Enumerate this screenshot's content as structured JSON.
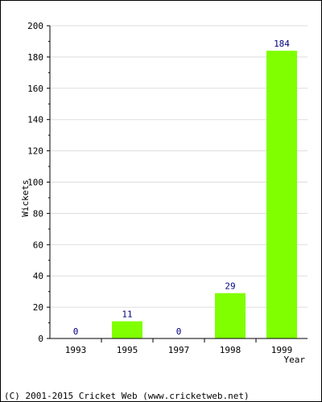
{
  "chart_data": {
    "type": "bar",
    "categories": [
      "1993",
      "1995",
      "1997",
      "1998",
      "1999"
    ],
    "values": [
      0,
      11,
      0,
      29,
      184
    ],
    "xlabel": "Year",
    "ylabel": "Wickets",
    "ylim": [
      0,
      200
    ],
    "yticks": [
      0,
      20,
      40,
      60,
      80,
      100,
      120,
      140,
      160,
      180,
      200
    ],
    "grid": true,
    "colors": {
      "bar": "#80ff00",
      "label": "#000080",
      "grid": "#dddddd"
    }
  },
  "footer": {
    "copyright": "(C) 2001-2015 Cricket Web (www.cricketweb.net)"
  }
}
